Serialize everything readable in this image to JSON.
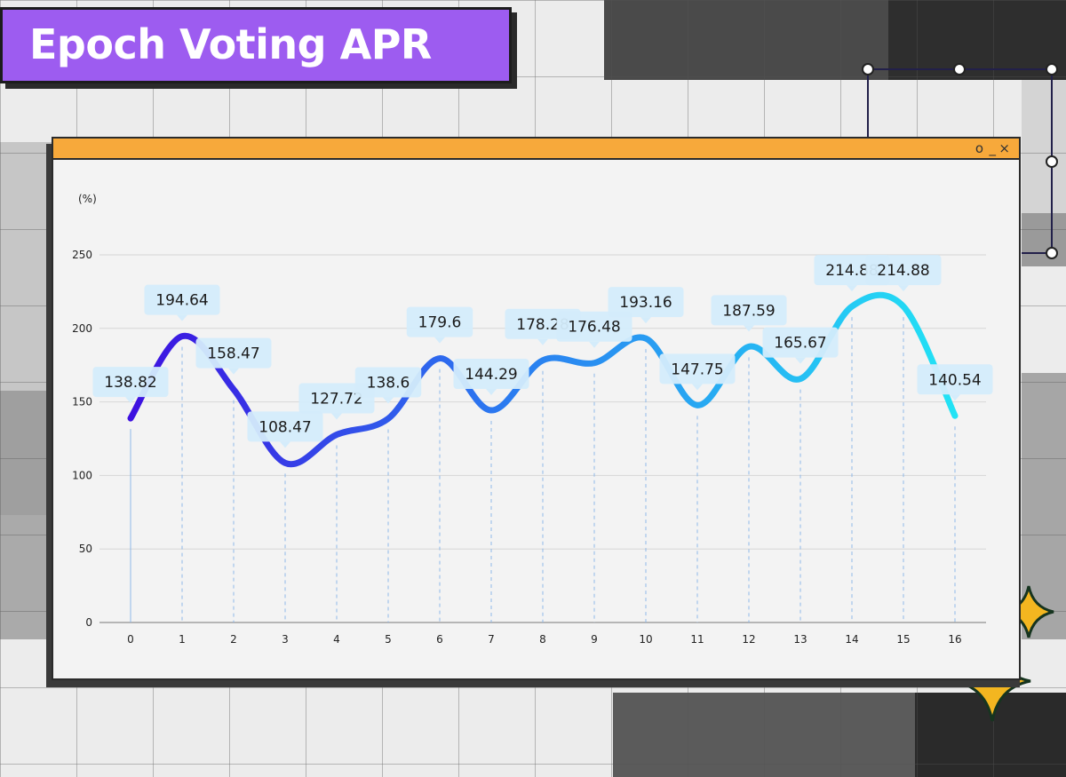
{
  "title": "Epoch Voting APR",
  "window": {
    "controls": [
      "o",
      "_",
      "×"
    ]
  },
  "chart_data": {
    "type": "line",
    "smooth": true,
    "ylabel": "(%)",
    "xlabel": "",
    "ylim": [
      0,
      250
    ],
    "yticks": [
      0,
      50,
      100,
      150,
      200,
      250
    ],
    "x": [
      0,
      1,
      2,
      3,
      4,
      5,
      6,
      7,
      8,
      9,
      10,
      11,
      12,
      13,
      14,
      15,
      16
    ],
    "series": [
      {
        "values": [
          138.82,
          194.64,
          158.47,
          108.47,
          127.72,
          138.6,
          179.6,
          144.29,
          178.28,
          176.48,
          193.16,
          147.75,
          187.59,
          165.67,
          214.88,
          214.88,
          140.54
        ],
        "color_start": "#3d10e0",
        "color_end": "#22e3f5"
      }
    ],
    "grid": true,
    "data_labels": true
  }
}
